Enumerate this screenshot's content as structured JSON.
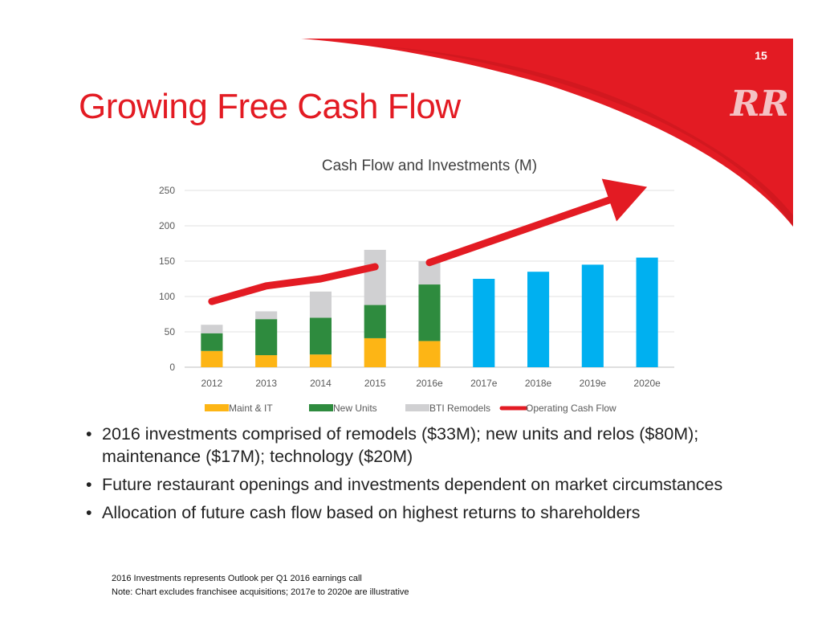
{
  "slide": {
    "title": "Growing Free Cash Flow",
    "page_number": "15",
    "logo_label": "RR",
    "accent_color": "#e31b23"
  },
  "bullets": [
    "2016 investments comprised of remodels ($33M); new units and relos ($80M); maintenance ($17M); technology ($20M)",
    "Future restaurant openings and investments dependent on market circumstances",
    "Allocation of future cash flow based on highest returns to shareholders"
  ],
  "footnotes": [
    "2016 Investments represents Outlook per Q1 2016 earnings call",
    "Note: Chart excludes franchisee acquisitions; 2017e to 2020e are illustrative"
  ],
  "chart_data": {
    "type": "bar",
    "stacked": true,
    "title": "Cash Flow and Investments (M)",
    "xlabel": "",
    "ylabel": "",
    "categories": [
      "2012",
      "2013",
      "2014",
      "2015",
      "2016e",
      "2017e",
      "2018e",
      "2019e",
      "2020e"
    ],
    "ylim": [
      0,
      250
    ],
    "yticks": [
      0,
      50,
      100,
      150,
      200,
      250
    ],
    "grid": true,
    "legend_position": "bottom",
    "series": [
      {
        "name": "Maint & IT",
        "color": "#fdb515",
        "values": [
          23,
          17,
          18,
          41,
          37,
          null,
          null,
          null,
          null
        ]
      },
      {
        "name": "New Units",
        "color": "#2e8b3e",
        "values": [
          25,
          51,
          52,
          47,
          80,
          null,
          null,
          null,
          null
        ]
      },
      {
        "name": "BTI Remodels",
        "color": "#d0d0d2",
        "values": [
          12,
          11,
          37,
          78,
          33,
          null,
          null,
          null,
          null
        ]
      },
      {
        "color": "#00b0f0",
        "values": [
          null,
          null,
          null,
          null,
          null,
          125,
          135,
          145,
          155
        ]
      }
    ],
    "line_series": {
      "name": "Operating Cash Flow",
      "color": "#e31b23",
      "values": [
        93,
        115,
        125,
        142
      ]
    },
    "trend_arrow": {
      "from": [
        4,
        148
      ],
      "to": [
        8,
        255
      ],
      "color": "#e31b23"
    }
  }
}
